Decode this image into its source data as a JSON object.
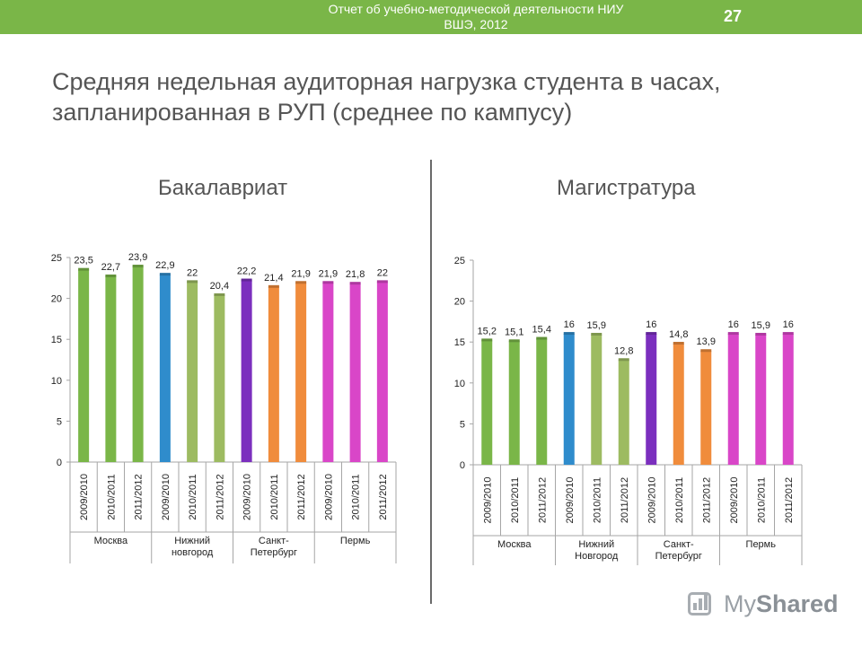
{
  "header": {
    "report_title": "Отчет об учебно-методической деятельности НИУ ВШЭ, 2012",
    "page_number": "27"
  },
  "slide_title": "Средняя недельная аудиторная нагрузка студента в часах, запланированная в РУП (среднее по кампусу)",
  "subtitles": {
    "left": "Бакалавриат",
    "right": "Магистратура"
  },
  "logo": {
    "text_regular": "My",
    "text_bold": "Shared"
  },
  "chart_data": [
    {
      "type": "bar",
      "title": "Бакалавриат",
      "categories": [
        "2009/2010",
        "2010/2011",
        "2011/2012",
        "2009/2010",
        "2010/2011",
        "2011/2012",
        "2009/2010",
        "2010/2011",
        "2011/2012",
        "2009/2010",
        "2010/2011",
        "2011/2012"
      ],
      "groups": [
        "Москва",
        "Нижний новгород",
        "Санкт-Петербург",
        "Пермь"
      ],
      "values": [
        23.5,
        22.7,
        23.9,
        22.9,
        22,
        20.4,
        22.2,
        21.4,
        21.9,
        21.9,
        21.8,
        22
      ],
      "value_labels": [
        "23,5",
        "22,7",
        "23,9",
        "22,9",
        "22",
        "20,4",
        "22,2",
        "21,4",
        "21,9",
        "21,9",
        "21,8",
        "22"
      ],
      "bar_colors": [
        "#7ab648",
        "#7ab648",
        "#7ab648",
        "#2f8ccc",
        "#9dbb61",
        "#9dbb61",
        "#7b2fbe",
        "#f08c3c",
        "#f08c3c",
        "#d946c8",
        "#d946c8",
        "#d946c8"
      ],
      "ylim": [
        0,
        25
      ],
      "yticks": [
        "0",
        "5",
        "10",
        "15",
        "20",
        "25"
      ],
      "grid": false
    },
    {
      "type": "bar",
      "title": "Магистратура",
      "categories": [
        "2009/2010",
        "2010/2011",
        "2011/2012",
        "2009/2010",
        "2010/2011",
        "2011/2012",
        "2009/2010",
        "2010/2011",
        "2011/2012",
        "2009/2010",
        "2010/2011",
        "2011/2012"
      ],
      "groups": [
        "Москва",
        "Нижний Новгород",
        "Санкт-Петербург",
        "Пермь"
      ],
      "values": [
        15.2,
        15.1,
        15.4,
        16,
        15.9,
        12.8,
        16,
        14.8,
        13.9,
        16,
        15.9,
        16
      ],
      "value_labels": [
        "15,2",
        "15,1",
        "15,4",
        "16",
        "15,9",
        "12,8",
        "16",
        "14,8",
        "13,9",
        "16",
        "15,9",
        "16"
      ],
      "bar_colors": [
        "#7ab648",
        "#7ab648",
        "#7ab648",
        "#2f8ccc",
        "#9dbb61",
        "#9dbb61",
        "#7b2fbe",
        "#f08c3c",
        "#f08c3c",
        "#d946c8",
        "#d946c8",
        "#d946c8"
      ],
      "ylim": [
        0,
        25
      ],
      "yticks": [
        "0",
        "5",
        "10",
        "15",
        "20",
        "25"
      ],
      "grid": false
    }
  ]
}
